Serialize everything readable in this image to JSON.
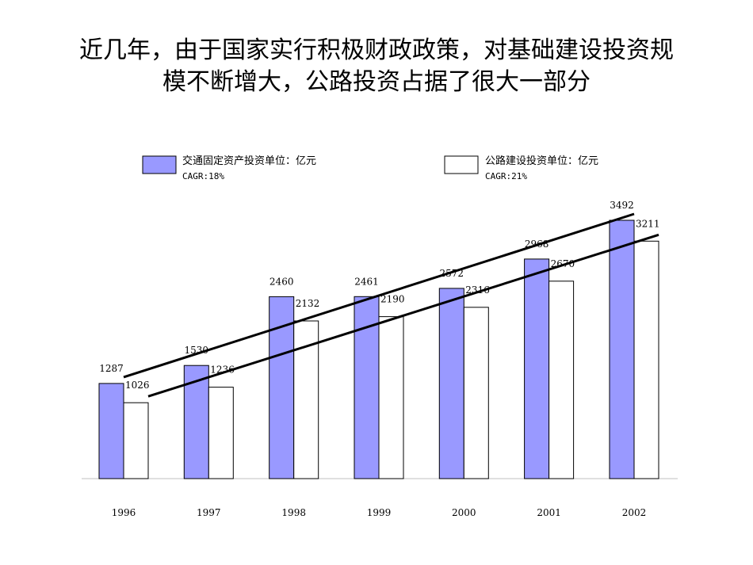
{
  "title": {
    "line1": "近几年，由于国家实行积极财政政策，对基础建设投资规",
    "line2": "模不断增大，公路投资占据了很大一部分"
  },
  "colors": {
    "series1_fill": "#9999ff",
    "series2_fill": "#ffffff",
    "bar_stroke": "#000000",
    "trend_line": "#000000",
    "baseline": "#c0c0c0"
  },
  "chart_data": {
    "type": "bar",
    "categories": [
      "1996",
      "1997",
      "1998",
      "1999",
      "2000",
      "2001",
      "2002"
    ],
    "series": [
      {
        "name": "交通固定资产投资单位：亿元",
        "cagr": "CAGR:18%",
        "values": [
          1287,
          1530,
          2460,
          2461,
          2572,
          2968,
          3492
        ]
      },
      {
        "name": "公路建设投资单位：亿元",
        "cagr": "CAGR:21%",
        "values": [
          1026,
          1236,
          2132,
          2190,
          2316,
          2670,
          3211
        ]
      }
    ],
    "trend_lines": [
      {
        "series": 0,
        "from": [
          1996,
          1287
        ],
        "to": [
          2002,
          3492
        ]
      },
      {
        "series": 1,
        "from": [
          1996,
          1026
        ],
        "to": [
          2002,
          3211
        ]
      }
    ],
    "ylim": [
      0,
      3600
    ],
    "grid": false,
    "legend": "top",
    "xlabel": "",
    "ylabel": ""
  }
}
